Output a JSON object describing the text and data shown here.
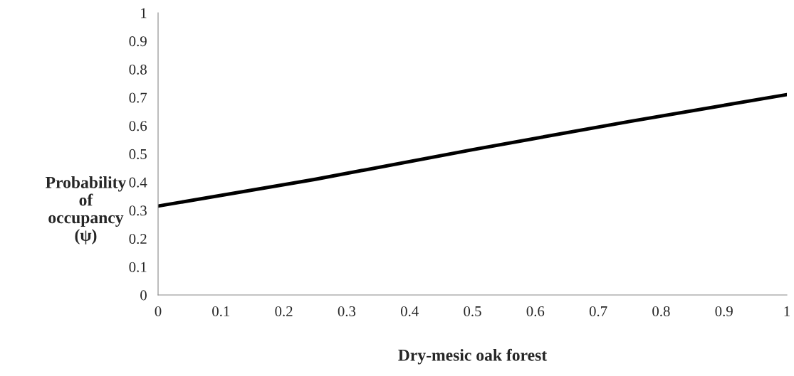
{
  "chart_data": {
    "type": "line",
    "xlabel": "Dry-mesic oak forest",
    "ylabel": "Probability\nof\noccupancy\n(ψ)",
    "x": [
      0,
      0.25,
      0.5,
      0.75,
      1
    ],
    "series": [
      {
        "color": "#000000",
        "values": [
          0.315,
          0.41,
          0.515,
          0.615,
          0.71
        ]
      }
    ],
    "xlim": [
      0,
      1
    ],
    "ylim": [
      0,
      1
    ],
    "xticks": [
      0,
      0.1,
      0.2,
      0.3,
      0.4,
      0.5,
      0.6,
      0.7,
      0.8,
      0.9,
      1
    ],
    "yticks": [
      0,
      0.1,
      0.2,
      0.3,
      0.4,
      0.5,
      0.6,
      0.7,
      0.8,
      0.9,
      1
    ],
    "grid": false,
    "marker": "none",
    "line_style": "solid"
  }
}
